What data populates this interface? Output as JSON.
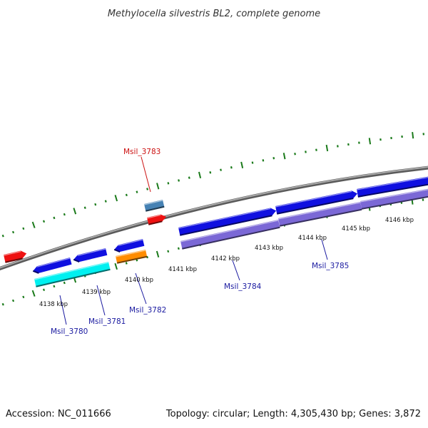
{
  "title": "Methylocella silvestris BL2, complete genome",
  "footer": {
    "accession": "Accession: NC_011666",
    "stats": "Topology: circular; Length: 4,305,430 bp; Genes: 3,872"
  },
  "colors": {
    "backbone": "#808080",
    "tick": "#1a7a1a",
    "forward_cds": "#1010e0",
    "reverse_cds": "#7b68d6",
    "cyan_cds": "#00f0f0",
    "orange_cds": "#ff8c00",
    "red_cds": "#ee1111",
    "steel_cds": "#4682b4",
    "label_blue": "#1a1aa0",
    "label_red": "#cc1111"
  },
  "scale_labels": [
    "4138 kbp",
    "4139 kbp",
    "4140 kbp",
    "4141 kbp",
    "4142 kbp",
    "4143 kbp",
    "4144 kbp",
    "4145 kbp",
    "4146 kbp"
  ],
  "gene_labels": [
    {
      "name": "Msil_3780",
      "color": "label_blue"
    },
    {
      "name": "Msil_3781",
      "color": "label_blue"
    },
    {
      "name": "Msil_3782",
      "color": "label_blue"
    },
    {
      "name": "Msil_3784",
      "color": "label_blue"
    },
    {
      "name": "Msil_3785",
      "color": "label_blue"
    },
    {
      "name": "Msil_3783",
      "color": "label_red"
    }
  ]
}
